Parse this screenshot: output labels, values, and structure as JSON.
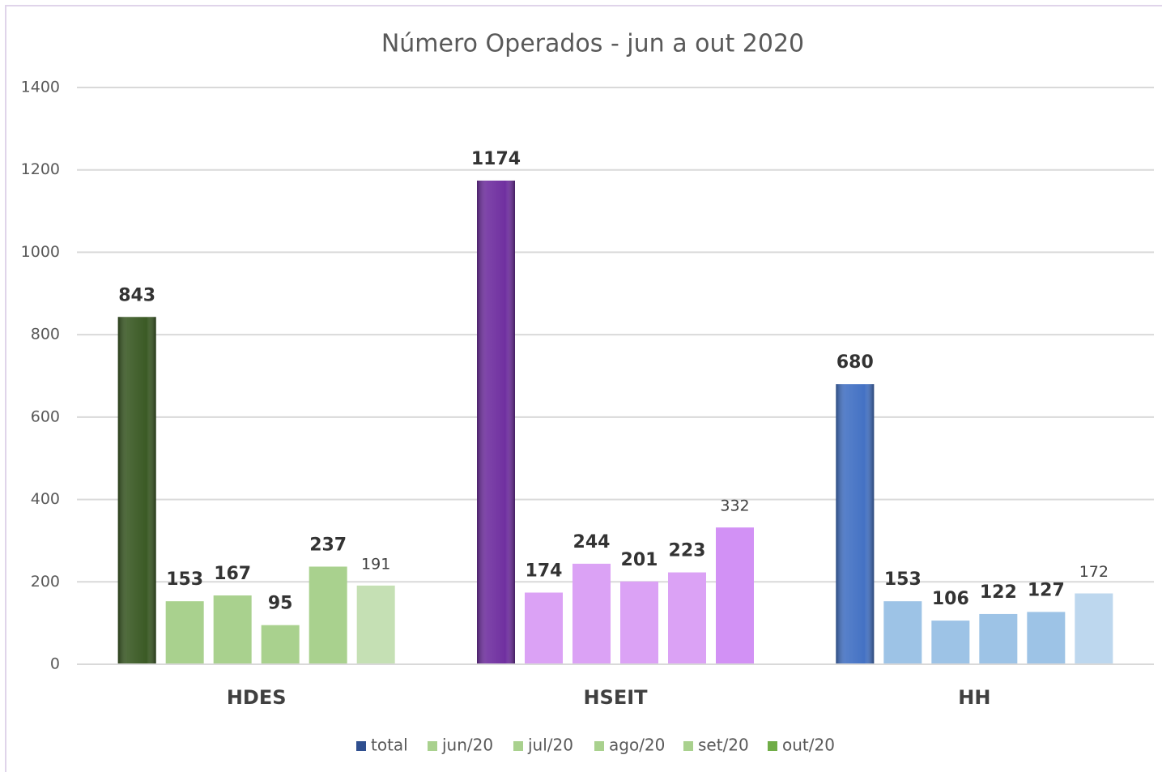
{
  "chart_data": {
    "type": "bar",
    "title": "Número Operados - jun a out 2020",
    "categories": [
      "HDES",
      "HSEIT",
      "HH"
    ],
    "ylim": [
      0,
      1400
    ],
    "yticks": [
      0,
      200,
      400,
      600,
      800,
      1000,
      1200,
      1400
    ],
    "grid": true,
    "legend": "bottom",
    "series": [
      {
        "name": "total",
        "color": "#2f4f8f",
        "point_colors": [
          "#3b5a25",
          "#7030a0",
          "#4472c4"
        ],
        "values": [
          843,
          1174,
          680
        ]
      },
      {
        "name": "jun/20",
        "color": "#a9d18e",
        "point_colors": [
          "#a9d18e",
          "#dba2f5",
          "#9dc3e6"
        ],
        "values": [
          153,
          174,
          153
        ]
      },
      {
        "name": "jul/20",
        "color": "#a9d18e",
        "point_colors": [
          "#a9d18e",
          "#dba2f5",
          "#9dc3e6"
        ],
        "values": [
          167,
          244,
          106
        ]
      },
      {
        "name": "ago/20",
        "color": "#a9d18e",
        "point_colors": [
          "#a9d18e",
          "#dba2f5",
          "#9dc3e6"
        ],
        "values": [
          95,
          201,
          122
        ]
      },
      {
        "name": "set/20",
        "color": "#a9d18e",
        "point_colors": [
          "#a9d18e",
          "#dba2f5",
          "#9dc3e6"
        ],
        "values": [
          237,
          223,
          127
        ]
      },
      {
        "name": "out/20",
        "color": "#70ad47",
        "point_colors": [
          "#c5e0b4",
          "#d291f5",
          "#bdd7ee"
        ],
        "values": [
          191,
          332,
          172
        ]
      }
    ]
  }
}
